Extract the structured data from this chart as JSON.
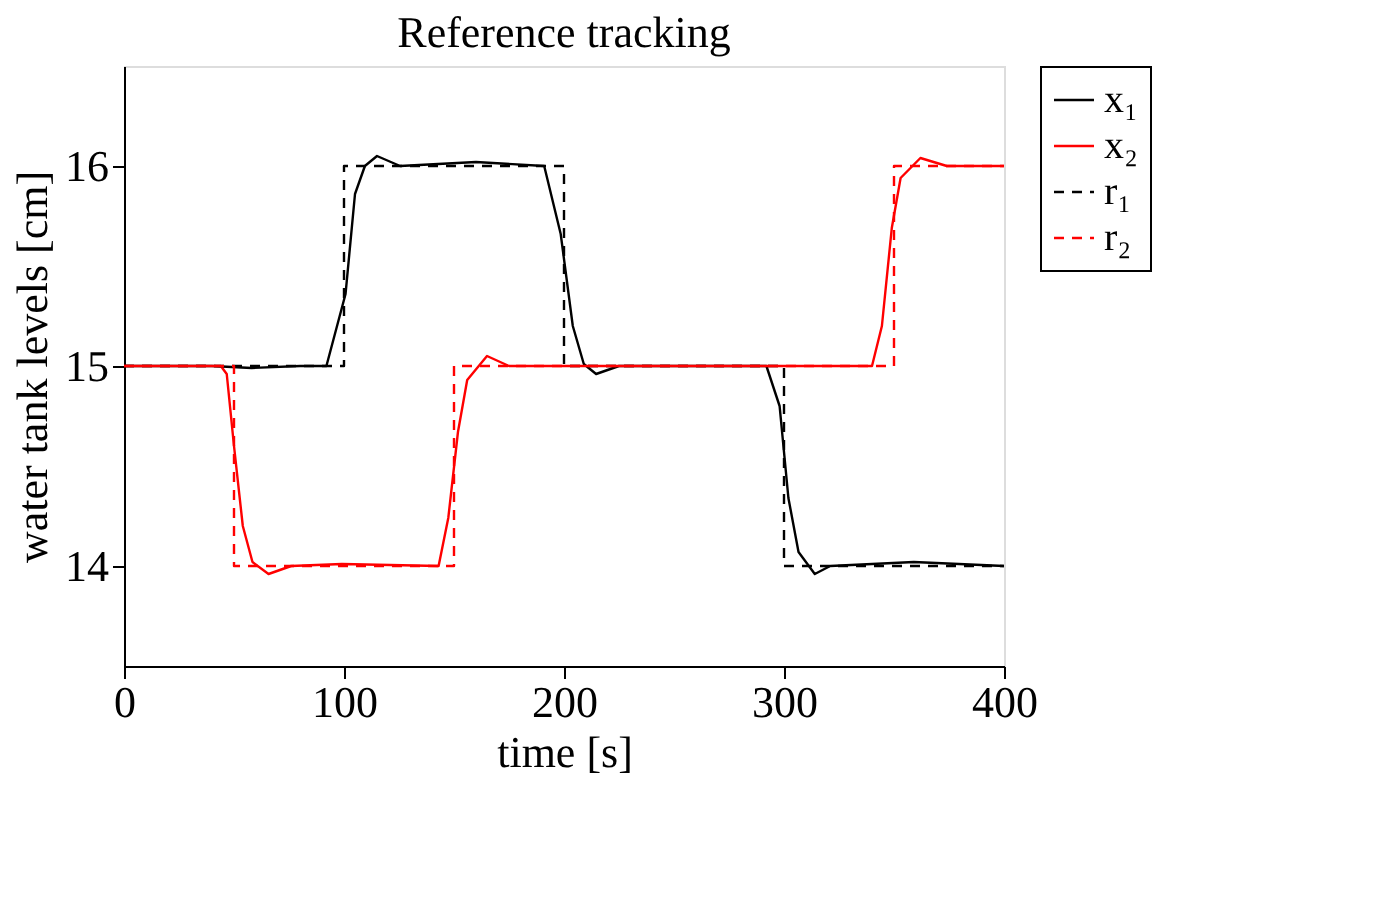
{
  "chart_data": {
    "type": "line",
    "title": "Reference tracking",
    "xlabel": "time [s]",
    "ylabel": "water tank levels [cm]",
    "xlim": [
      0,
      400
    ],
    "xticks": [
      0,
      100,
      200,
      300,
      400
    ],
    "ylim": [
      13.5,
      16.5
    ],
    "yticks": [
      14,
      15,
      16
    ],
    "grid": false,
    "legend": "right",
    "series": [
      {
        "name": "x₁",
        "color": "#000000",
        "line_style": "solid",
        "x": [
          0,
          40,
          58,
          80,
          92,
          100.7,
          105,
          109.5,
          115,
          125.5,
          160,
          191,
          198.5,
          204,
          209,
          214.6,
          225,
          292,
          298,
          302,
          306.6,
          314,
          321,
          359,
          400
        ],
        "values": [
          15,
          15,
          14.99,
          15,
          15,
          15.36,
          15.86,
          16,
          16.05,
          16,
          16.02,
          16,
          15.66,
          15.2,
          15.01,
          14.96,
          15,
          15,
          14.8,
          14.34,
          14.07,
          13.96,
          14,
          14.02,
          14
        ]
      },
      {
        "name": "x₂",
        "color": "#ff0000",
        "line_style": "solid",
        "x": [
          0,
          44,
          46.7,
          50,
          54,
          58.4,
          65.7,
          76,
          99,
          143,
          147.4,
          151.8,
          156,
          165,
          175,
          340,
          344.5,
          349,
          353,
          362,
          374,
          400
        ],
        "values": [
          15,
          15,
          14.96,
          14.6,
          14.2,
          14.02,
          13.96,
          14,
          14.01,
          14,
          14.24,
          14.67,
          14.93,
          15.05,
          15,
          15,
          15.2,
          15.69,
          15.94,
          16.04,
          16,
          16
        ]
      },
      {
        "name": "r₁",
        "color": "#000000",
        "line_style": "dashed",
        "x": [
          0,
          100,
          100,
          200,
          200,
          300,
          300,
          400
        ],
        "values": [
          15,
          15,
          16,
          16,
          15,
          15,
          14,
          14
        ]
      },
      {
        "name": "r₂",
        "color": "#ff0000",
        "line_style": "dashed",
        "x": [
          0,
          50,
          50,
          150,
          150,
          350,
          350,
          400
        ],
        "values": [
          15,
          15,
          14,
          14,
          15,
          15,
          16,
          16
        ]
      }
    ]
  }
}
